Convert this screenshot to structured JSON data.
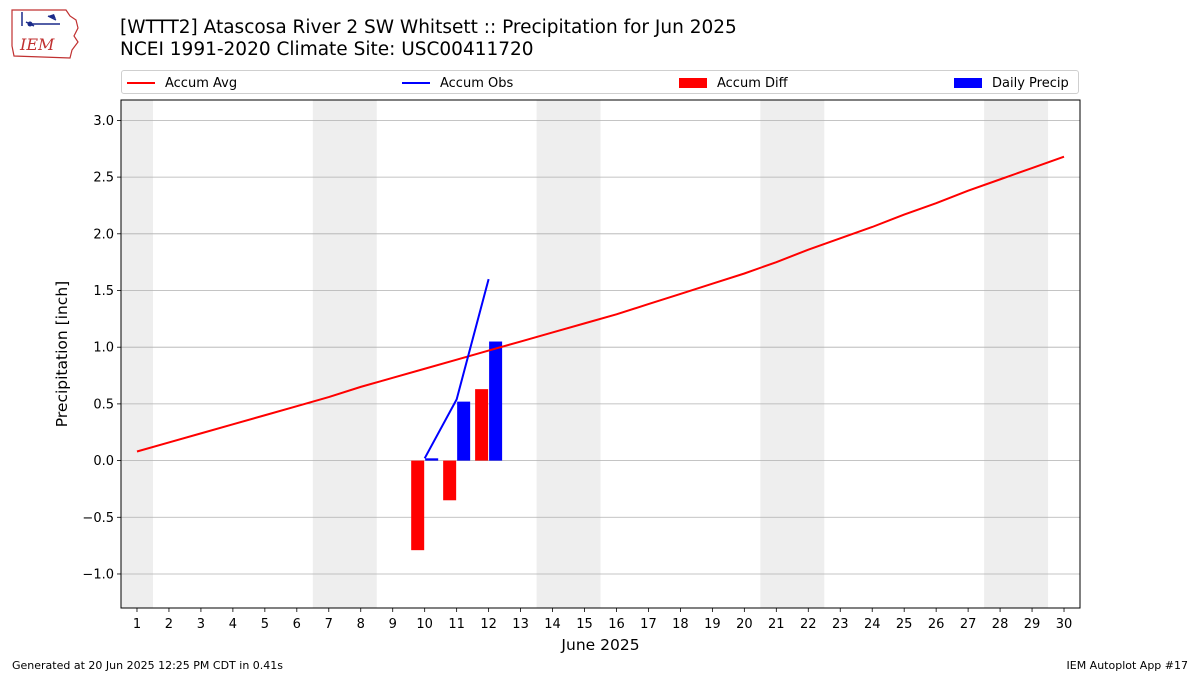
{
  "header": {
    "title_line1": "[WTTT2] Atascosa River 2 SW Whitsett :: Precipitation for Jun 2025",
    "title_line2": "NCEI 1991-2020 Climate Site: USC00411720",
    "logo_text": "IEM"
  },
  "legend": {
    "items": [
      {
        "label": "Accum Avg",
        "kind": "line",
        "color": "#ff0000"
      },
      {
        "label": "Accum Obs",
        "kind": "line",
        "color": "#0000ff"
      },
      {
        "label": "Accum Diff",
        "kind": "box",
        "color": "#ff0000"
      },
      {
        "label": "Daily Precip",
        "kind": "box",
        "color": "#0000ff"
      }
    ]
  },
  "footer": {
    "left": "Generated at 20 Jun 2025 12:25 PM CDT in 0.41s",
    "right": "IEM Autoplot App #17"
  },
  "chart_data": {
    "type": "bar",
    "xlabel": "June 2025",
    "ylabel": "Precipitation [inch]",
    "x": [
      1,
      2,
      3,
      4,
      5,
      6,
      7,
      8,
      9,
      10,
      11,
      12,
      13,
      14,
      15,
      16,
      17,
      18,
      19,
      20,
      21,
      22,
      23,
      24,
      25,
      26,
      27,
      28,
      29,
      30
    ],
    "xlim": [
      0.5,
      30.5
    ],
    "ylim": [
      -1.3,
      3.18
    ],
    "yticks": [
      -1.0,
      -0.5,
      0.0,
      0.5,
      1.0,
      1.5,
      2.0,
      2.5,
      3.0
    ],
    "ytick_labels": [
      "−1.0",
      "−0.5",
      "0.0",
      "0.5",
      "1.0",
      "1.5",
      "2.0",
      "2.5",
      "3.0"
    ],
    "grid": true,
    "weekend_shading": [
      [
        0.5,
        1.5
      ],
      [
        6.5,
        8.5
      ],
      [
        13.5,
        15.5
      ],
      [
        20.5,
        22.5
      ],
      [
        27.5,
        29.5
      ]
    ],
    "series": [
      {
        "name": "Accum Avg",
        "type": "line",
        "color": "#ff0000",
        "values": [
          0.08,
          0.16,
          0.24,
          0.32,
          0.4,
          0.48,
          0.56,
          0.65,
          0.73,
          0.81,
          0.89,
          0.97,
          1.05,
          1.13,
          1.21,
          1.29,
          1.38,
          1.47,
          1.56,
          1.65,
          1.75,
          1.86,
          1.96,
          2.06,
          2.17,
          2.27,
          2.38,
          2.48,
          2.58,
          2.68
        ]
      },
      {
        "name": "Accum Obs",
        "type": "line",
        "color": "#0000ff",
        "x": [
          10,
          11,
          12
        ],
        "values": [
          0.02,
          0.54,
          1.6
        ]
      },
      {
        "name": "Accum Diff",
        "type": "bar",
        "color": "#ff0000",
        "x": [
          10,
          11,
          12
        ],
        "values": [
          -0.79,
          -0.35,
          0.63
        ]
      },
      {
        "name": "Daily Precip",
        "type": "bar",
        "color": "#0000ff",
        "x": [
          10,
          11,
          12
        ],
        "values": [
          0.02,
          0.52,
          1.05
        ]
      }
    ]
  }
}
